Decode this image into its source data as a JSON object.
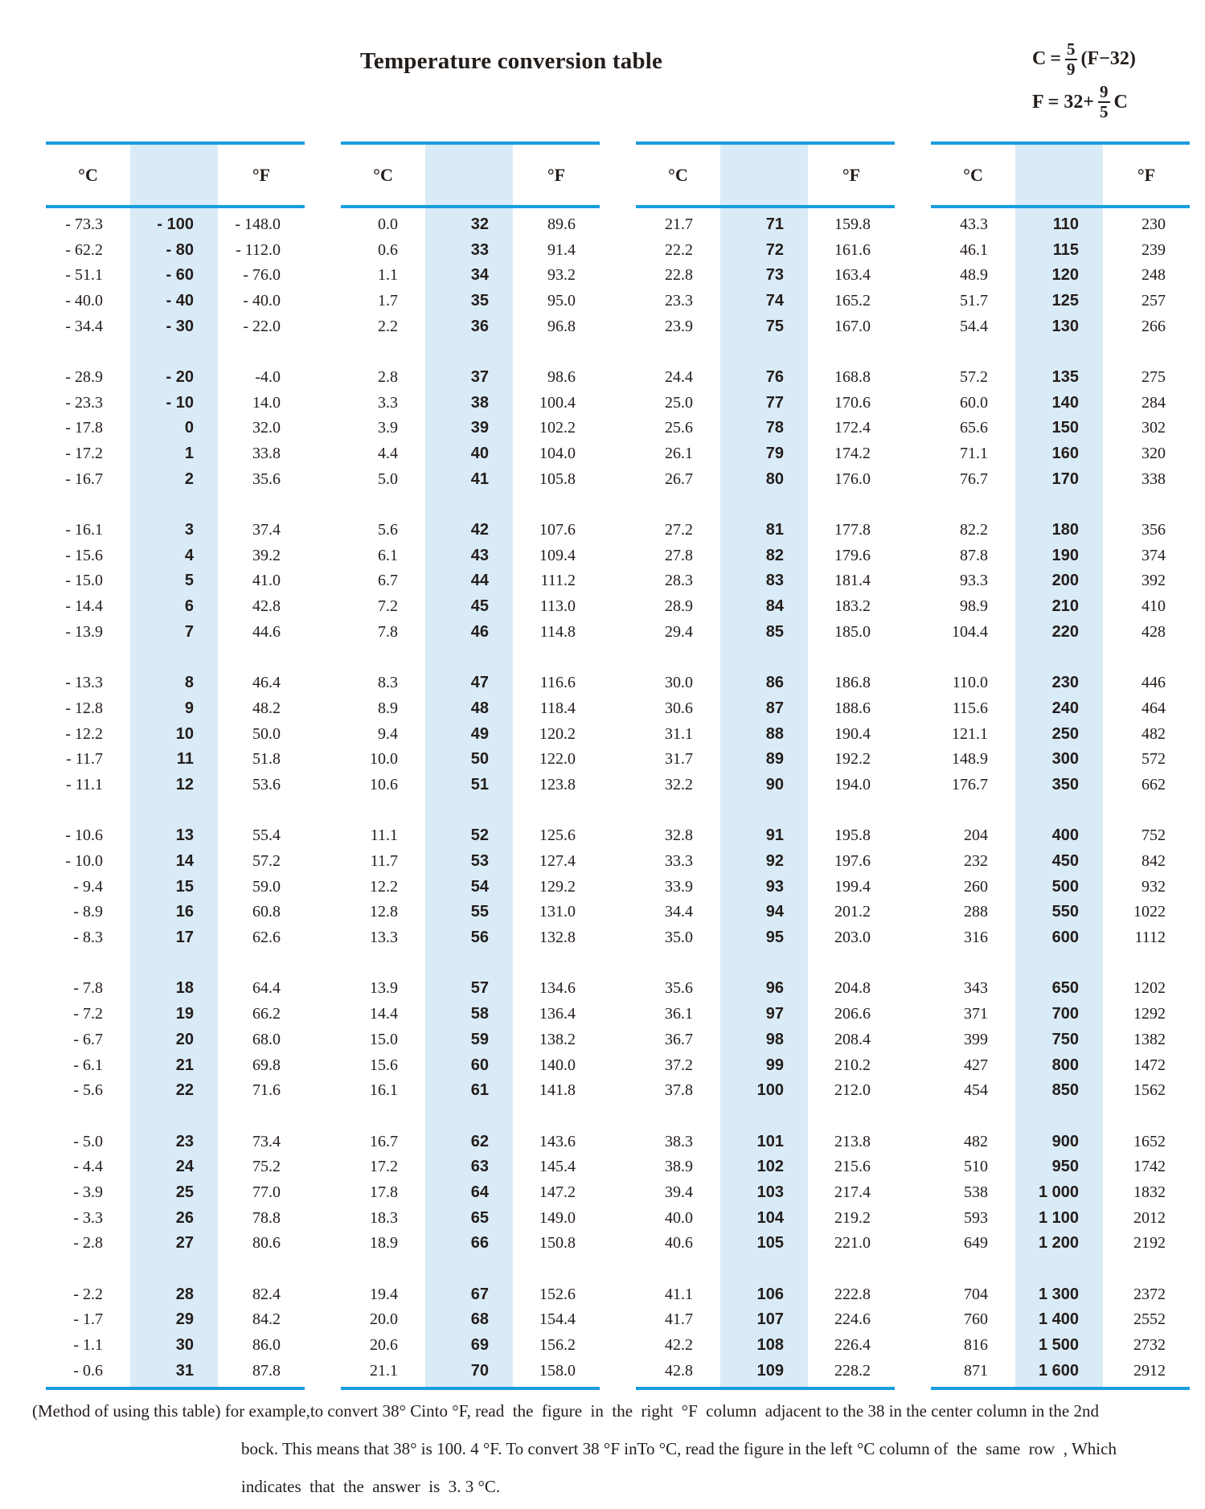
{
  "title": "Temperature conversion table",
  "colors": {
    "rule": "#1A9DDE",
    "shade": "#D9EBF7",
    "ink": "#241D1A"
  },
  "formulas": {
    "celsius": {
      "lhs": "C",
      "eq": "=",
      "num": "5",
      "den": "9",
      "tail": "(F−32)"
    },
    "fahrenheit": {
      "lhs": "F",
      "eq": "= 32+",
      "num": "9",
      "den": "5",
      "tail": "C"
    }
  },
  "table": {
    "header_c": "°C",
    "header_f": "°F",
    "groups": [
      {
        "blocks": [
          [
            [
              "- 73.3",
              "- 100",
              "- 148.0"
            ],
            [
              "- 62.2",
              "- 80",
              "- 112.0"
            ],
            [
              "- 51.1",
              "- 60",
              "- 76.0"
            ],
            [
              "- 40.0",
              "- 40",
              "- 40.0"
            ],
            [
              "- 34.4",
              "- 30",
              "- 22.0"
            ]
          ],
          [
            [
              "- 28.9",
              "- 20",
              "-4.0"
            ],
            [
              "- 23.3",
              "- 10",
              "14.0"
            ],
            [
              "- 17.8",
              "0",
              "32.0"
            ],
            [
              "- 17.2",
              "1",
              "33.8"
            ],
            [
              "- 16.7",
              "2",
              "35.6"
            ]
          ],
          [
            [
              "- 16.1",
              "3",
              "37.4"
            ],
            [
              "- 15.6",
              "4",
              "39.2"
            ],
            [
              "- 15.0",
              "5",
              "41.0"
            ],
            [
              "- 14.4",
              "6",
              "42.8"
            ],
            [
              "- 13.9",
              "7",
              "44.6"
            ]
          ],
          [
            [
              "- 13.3",
              "8",
              "46.4"
            ],
            [
              "- 12.8",
              "9",
              "48.2"
            ],
            [
              "- 12.2",
              "10",
              "50.0"
            ],
            [
              "- 11.7",
              "11",
              "51.8"
            ],
            [
              "- 11.1",
              "12",
              "53.6"
            ]
          ],
          [
            [
              "- 10.6",
              "13",
              "55.4"
            ],
            [
              "- 10.0",
              "14",
              "57.2"
            ],
            [
              "- 9.4",
              "15",
              "59.0"
            ],
            [
              "- 8.9",
              "16",
              "60.8"
            ],
            [
              "- 8.3",
              "17",
              "62.6"
            ]
          ],
          [
            [
              "- 7.8",
              "18",
              "64.4"
            ],
            [
              "- 7.2",
              "19",
              "66.2"
            ],
            [
              "- 6.7",
              "20",
              "68.0"
            ],
            [
              "- 6.1",
              "21",
              "69.8"
            ],
            [
              "- 5.6",
              "22",
              "71.6"
            ]
          ],
          [
            [
              "- 5.0",
              "23",
              "73.4"
            ],
            [
              "- 4.4",
              "24",
              "75.2"
            ],
            [
              "- 3.9",
              "25",
              "77.0"
            ],
            [
              "- 3.3",
              "26",
              "78.8"
            ],
            [
              "- 2.8",
              "27",
              "80.6"
            ]
          ],
          [
            [
              "- 2.2",
              "28",
              "82.4"
            ],
            [
              "- 1.7",
              "29",
              "84.2"
            ],
            [
              "- 1.1",
              "30",
              "86.0"
            ],
            [
              "- 0.6",
              "31",
              "87.8"
            ]
          ]
        ]
      },
      {
        "blocks": [
          [
            [
              "0.0",
              "32",
              "89.6"
            ],
            [
              "0.6",
              "33",
              "91.4"
            ],
            [
              "1.1",
              "34",
              "93.2"
            ],
            [
              "1.7",
              "35",
              "95.0"
            ],
            [
              "2.2",
              "36",
              "96.8"
            ]
          ],
          [
            [
              "2.8",
              "37",
              "98.6"
            ],
            [
              "3.3",
              "38",
              "100.4"
            ],
            [
              "3.9",
              "39",
              "102.2"
            ],
            [
              "4.4",
              "40",
              "104.0"
            ],
            [
              "5.0",
              "41",
              "105.8"
            ]
          ],
          [
            [
              "5.6",
              "42",
              "107.6"
            ],
            [
              "6.1",
              "43",
              "109.4"
            ],
            [
              "6.7",
              "44",
              "111.2"
            ],
            [
              "7.2",
              "45",
              "113.0"
            ],
            [
              "7.8",
              "46",
              "114.8"
            ]
          ],
          [
            [
              "8.3",
              "47",
              "116.6"
            ],
            [
              "8.9",
              "48",
              "118.4"
            ],
            [
              "9.4",
              "49",
              "120.2"
            ],
            [
              "10.0",
              "50",
              "122.0"
            ],
            [
              "10.6",
              "51",
              "123.8"
            ]
          ],
          [
            [
              "11.1",
              "52",
              "125.6"
            ],
            [
              "11.7",
              "53",
              "127.4"
            ],
            [
              "12.2",
              "54",
              "129.2"
            ],
            [
              "12.8",
              "55",
              "131.0"
            ],
            [
              "13.3",
              "56",
              "132.8"
            ]
          ],
          [
            [
              "13.9",
              "57",
              "134.6"
            ],
            [
              "14.4",
              "58",
              "136.4"
            ],
            [
              "15.0",
              "59",
              "138.2"
            ],
            [
              "15.6",
              "60",
              "140.0"
            ],
            [
              "16.1",
              "61",
              "141.8"
            ]
          ],
          [
            [
              "16.7",
              "62",
              "143.6"
            ],
            [
              "17.2",
              "63",
              "145.4"
            ],
            [
              "17.8",
              "64",
              "147.2"
            ],
            [
              "18.3",
              "65",
              "149.0"
            ],
            [
              "18.9",
              "66",
              "150.8"
            ]
          ],
          [
            [
              "19.4",
              "67",
              "152.6"
            ],
            [
              "20.0",
              "68",
              "154.4"
            ],
            [
              "20.6",
              "69",
              "156.2"
            ],
            [
              "21.1",
              "70",
              "158.0"
            ]
          ]
        ]
      },
      {
        "blocks": [
          [
            [
              "21.7",
              "71",
              "159.8"
            ],
            [
              "22.2",
              "72",
              "161.6"
            ],
            [
              "22.8",
              "73",
              "163.4"
            ],
            [
              "23.3",
              "74",
              "165.2"
            ],
            [
              "23.9",
              "75",
              "167.0"
            ]
          ],
          [
            [
              "24.4",
              "76",
              "168.8"
            ],
            [
              "25.0",
              "77",
              "170.6"
            ],
            [
              "25.6",
              "78",
              "172.4"
            ],
            [
              "26.1",
              "79",
              "174.2"
            ],
            [
              "26.7",
              "80",
              "176.0"
            ]
          ],
          [
            [
              "27.2",
              "81",
              "177.8"
            ],
            [
              "27.8",
              "82",
              "179.6"
            ],
            [
              "28.3",
              "83",
              "181.4"
            ],
            [
              "28.9",
              "84",
              "183.2"
            ],
            [
              "29.4",
              "85",
              "185.0"
            ]
          ],
          [
            [
              "30.0",
              "86",
              "186.8"
            ],
            [
              "30.6",
              "87",
              "188.6"
            ],
            [
              "31.1",
              "88",
              "190.4"
            ],
            [
              "31.7",
              "89",
              "192.2"
            ],
            [
              "32.2",
              "90",
              "194.0"
            ]
          ],
          [
            [
              "32.8",
              "91",
              "195.8"
            ],
            [
              "33.3",
              "92",
              "197.6"
            ],
            [
              "33.9",
              "93",
              "199.4"
            ],
            [
              "34.4",
              "94",
              "201.2"
            ],
            [
              "35.0",
              "95",
              "203.0"
            ]
          ],
          [
            [
              "35.6",
              "96",
              "204.8"
            ],
            [
              "36.1",
              "97",
              "206.6"
            ],
            [
              "36.7",
              "98",
              "208.4"
            ],
            [
              "37.2",
              "99",
              "210.2"
            ],
            [
              "37.8",
              "100",
              "212.0"
            ]
          ],
          [
            [
              "38.3",
              "101",
              "213.8"
            ],
            [
              "38.9",
              "102",
              "215.6"
            ],
            [
              "39.4",
              "103",
              "217.4"
            ],
            [
              "40.0",
              "104",
              "219.2"
            ],
            [
              "40.6",
              "105",
              "221.0"
            ]
          ],
          [
            [
              "41.1",
              "106",
              "222.8"
            ],
            [
              "41.7",
              "107",
              "224.6"
            ],
            [
              "42.2",
              "108",
              "226.4"
            ],
            [
              "42.8",
              "109",
              "228.2"
            ]
          ]
        ]
      },
      {
        "blocks": [
          [
            [
              "43.3",
              "110",
              "230"
            ],
            [
              "46.1",
              "115",
              "239"
            ],
            [
              "48.9",
              "120",
              "248"
            ],
            [
              "51.7",
              "125",
              "257"
            ],
            [
              "54.4",
              "130",
              "266"
            ]
          ],
          [
            [
              "57.2",
              "135",
              "275"
            ],
            [
              "60.0",
              "140",
              "284"
            ],
            [
              "65.6",
              "150",
              "302"
            ],
            [
              "71.1",
              "160",
              "320"
            ],
            [
              "76.7",
              "170",
              "338"
            ]
          ],
          [
            [
              "82.2",
              "180",
              "356"
            ],
            [
              "87.8",
              "190",
              "374"
            ],
            [
              "93.3",
              "200",
              "392"
            ],
            [
              "98.9",
              "210",
              "410"
            ],
            [
              "104.4",
              "220",
              "428"
            ]
          ],
          [
            [
              "110.0",
              "230",
              "446"
            ],
            [
              "115.6",
              "240",
              "464"
            ],
            [
              "121.1",
              "250",
              "482"
            ],
            [
              "148.9",
              "300",
              "572"
            ],
            [
              "176.7",
              "350",
              "662"
            ]
          ],
          [
            [
              "204",
              "400",
              "752"
            ],
            [
              "232",
              "450",
              "842"
            ],
            [
              "260",
              "500",
              "932"
            ],
            [
              "288",
              "550",
              "1022"
            ],
            [
              "316",
              "600",
              "1112"
            ]
          ],
          [
            [
              "343",
              "650",
              "1202"
            ],
            [
              "371",
              "700",
              "1292"
            ],
            [
              "399",
              "750",
              "1382"
            ],
            [
              "427",
              "800",
              "1472"
            ],
            [
              "454",
              "850",
              "1562"
            ]
          ],
          [
            [
              "482",
              "900",
              "1652"
            ],
            [
              "510",
              "950",
              "1742"
            ],
            [
              "538",
              "1 000",
              "1832"
            ],
            [
              "593",
              "1 100",
              "2012"
            ],
            [
              "649",
              "1 200",
              "2192"
            ]
          ],
          [
            [
              "704",
              "1 300",
              "2372"
            ],
            [
              "760",
              "1 400",
              "2552"
            ],
            [
              "816",
              "1 500",
              "2732"
            ],
            [
              "871",
              "1 600",
              "2912"
            ]
          ]
        ]
      }
    ]
  },
  "footer": {
    "line1": "(Method of using this table) for example,to convert 38° Cinto °F, read  the  figure  in  the  right  °F  column  adjacent to the 38 in the center column in the 2nd",
    "line2": "bock. This means that 38° is 100. 4 °F. To convert 38 °F inTo °C, read the figure in the left °C column of  the  same  row  , Which",
    "line3": "indicates  that  the  answer  is  3. 3 °C."
  }
}
